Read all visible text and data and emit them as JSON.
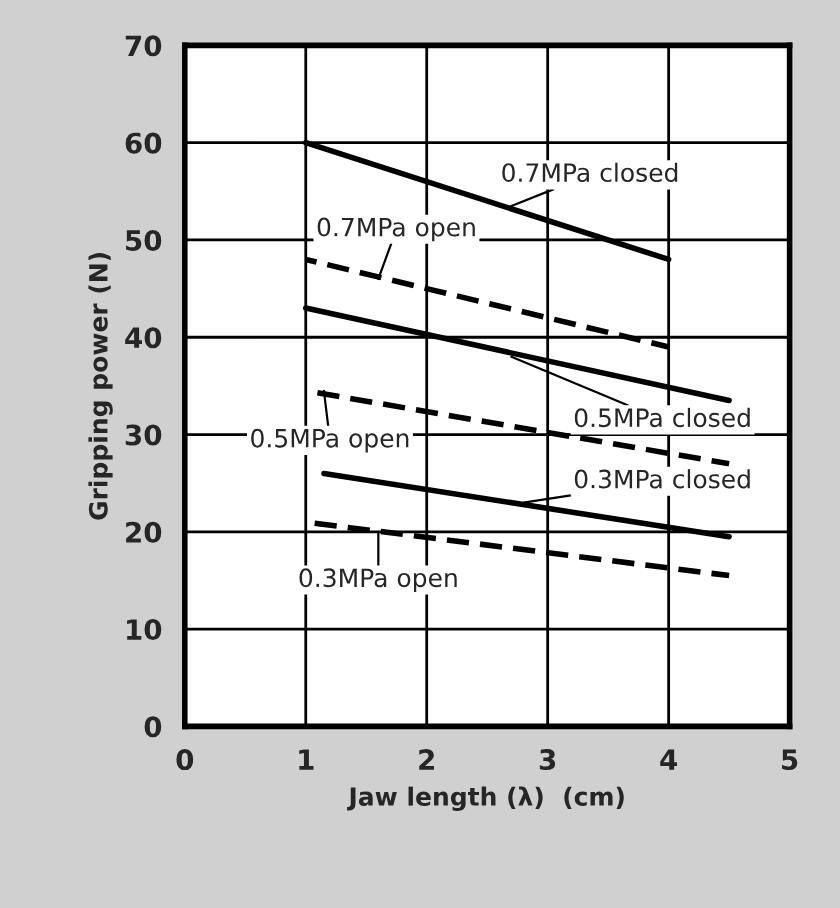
{
  "chart_data": {
    "type": "line",
    "xlabel": "Jaw length (λ)  (cm)",
    "ylabel": "Gripping power (N)",
    "xlim": [
      0,
      5
    ],
    "xticks": [
      0,
      1,
      2,
      3,
      4,
      5
    ],
    "ylim": [
      0,
      70
    ],
    "yticks": [
      0,
      10,
      20,
      30,
      40,
      50,
      60,
      70
    ],
    "grid": true,
    "marker": "none",
    "series": [
      {
        "color": "#000000",
        "line_style": "solid",
        "x": [
          1,
          4
        ],
        "values": [
          60,
          48
        ]
      },
      {
        "color": "#000000",
        "line_style": "dashed",
        "x": [
          1,
          4
        ],
        "values": [
          48,
          39
        ]
      },
      {
        "color": "#000000",
        "line_style": "solid",
        "x": [
          1,
          4.5
        ],
        "values": [
          43,
          33.5
        ]
      },
      {
        "color": "#000000",
        "line_style": "dashed",
        "x": [
          1,
          4.5
        ],
        "values": [
          34.5,
          27
        ]
      },
      {
        "color": "#000000",
        "line_style": "solid",
        "x": [
          1.15,
          4.5
        ],
        "values": [
          26,
          19.5
        ]
      },
      {
        "color": "#000000",
        "line_style": "dashed",
        "x": [
          1,
          4.5
        ],
        "values": [
          21,
          15.5
        ]
      }
    ],
    "annotations": [
      {
        "text": "0.7MPa closed",
        "x": 2.7,
        "y": 53.5
      },
      {
        "text": "0.7MPa open",
        "x": 1.6,
        "y": 46
      },
      {
        "text": "0.5MPa closed",
        "x": 2.7,
        "y": 38
      },
      {
        "text": "0.5MPa open",
        "x": 1.15,
        "y": 34.5
      },
      {
        "text": "0.3MPa closed",
        "x": 2.8,
        "y": 23
      },
      {
        "text": "0.3MPa open",
        "x": 1.6,
        "y": 20
      }
    ]
  }
}
